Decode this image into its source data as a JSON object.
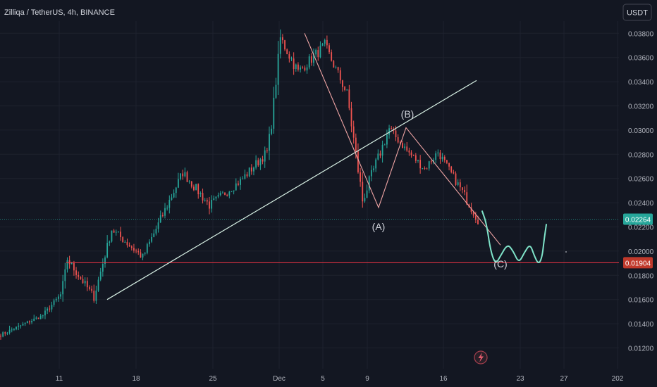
{
  "header": {
    "symbol_line": "Zilliqa / TetherUS, 4h, BINANCE",
    "currency_button": "USDT"
  },
  "colors": {
    "background": "#131722",
    "grid": "#1e222d",
    "up_candle": "#26a69a",
    "down_candle": "#ef5350",
    "trendline": "#d9f2e6",
    "wave_line": "#f0a5a5",
    "projection": "#7fe3c9",
    "support_line": "#f23645",
    "current_price_badge": "#26a69a",
    "support_price_badge": "#c0392b",
    "axis_text": "#b2b5be"
  },
  "chart_data": {
    "type": "candlestick",
    "timeframe": "4h",
    "y_axis": {
      "ticks": [
        0.012,
        0.014,
        0.016,
        0.018,
        0.02,
        0.022,
        0.024,
        0.026,
        0.028,
        0.03,
        0.032,
        0.034,
        0.036,
        0.038
      ],
      "tick_labels": [
        "0.01200",
        "0.01400",
        "0.01600",
        "0.01800",
        "0.02000",
        "0.02200",
        "0.02400",
        "0.02600",
        "0.02800",
        "0.03000",
        "0.03200",
        "0.03400",
        "0.03600",
        "0.03800"
      ],
      "range": [
        0.0112,
        0.0394
      ]
    },
    "x_axis": {
      "tick_labels": [
        "11",
        "18",
        "25",
        "Dec",
        "5",
        "9",
        "16",
        "23",
        "27",
        "202"
      ]
    },
    "price_labels": {
      "current": "0.02264",
      "support": "0.01904"
    },
    "support_level": 0.01904,
    "current_price": 0.02264,
    "wave_labels": [
      "(A)",
      "(B)",
      "(C)"
    ],
    "wave_points": {
      "start_peak": 0.038,
      "A": 0.0236,
      "B": 0.0302,
      "C": 0.0205
    },
    "trendline": {
      "from": 0.016,
      "to": 0.0341
    },
    "projection_path": [
      0.0233,
      0.0223,
      0.02,
      0.0189,
      0.0196,
      0.0206,
      0.02,
      0.019,
      0.0199,
      0.0206,
      0.0196,
      0.0189,
      0.0195,
      0.021,
      0.0222
    ],
    "segments": [
      {
        "start": 0.013,
        "end": 0.0147,
        "n": 20,
        "noise": 0.0003
      },
      {
        "start": 0.0147,
        "end": 0.0164,
        "n": 8,
        "noise": 0.0004
      },
      {
        "start": 0.0164,
        "end": 0.0193,
        "n": 3,
        "noise": 0.0004
      },
      {
        "start": 0.0193,
        "end": 0.0162,
        "n": 12,
        "noise": 0.0007
      },
      {
        "start": 0.0162,
        "end": 0.0218,
        "n": 8,
        "noise": 0.0007
      },
      {
        "start": 0.0218,
        "end": 0.0195,
        "n": 14,
        "noise": 0.0007
      },
      {
        "start": 0.0195,
        "end": 0.0265,
        "n": 18,
        "noise": 0.0008
      },
      {
        "start": 0.0265,
        "end": 0.0238,
        "n": 12,
        "noise": 0.0008
      },
      {
        "start": 0.0238,
        "end": 0.0258,
        "n": 14,
        "noise": 0.0007
      },
      {
        "start": 0.0258,
        "end": 0.0282,
        "n": 12,
        "noise": 0.0008
      },
      {
        "start": 0.0282,
        "end": 0.0305,
        "n": 2,
        "noise": 0.0008
      },
      {
        "start": 0.0305,
        "end": 0.0376,
        "n": 4,
        "noise": 0.001
      },
      {
        "start": 0.0376,
        "end": 0.0348,
        "n": 8,
        "noise": 0.001
      },
      {
        "start": 0.0348,
        "end": 0.037,
        "n": 12,
        "noise": 0.0009
      },
      {
        "start": 0.037,
        "end": 0.033,
        "n": 10,
        "noise": 0.0009
      },
      {
        "start": 0.033,
        "end": 0.0242,
        "n": 7,
        "noise": 0.0012
      },
      {
        "start": 0.0242,
        "end": 0.0272,
        "n": 6,
        "noise": 0.001
      },
      {
        "start": 0.0272,
        "end": 0.0301,
        "n": 6,
        "noise": 0.0009
      },
      {
        "start": 0.0301,
        "end": 0.0283,
        "n": 8,
        "noise": 0.0007
      },
      {
        "start": 0.0283,
        "end": 0.0268,
        "n": 8,
        "noise": 0.0007
      },
      {
        "start": 0.0268,
        "end": 0.0282,
        "n": 6,
        "noise": 0.0007
      },
      {
        "start": 0.0282,
        "end": 0.0252,
        "n": 10,
        "noise": 0.0007
      },
      {
        "start": 0.0252,
        "end": 0.0226,
        "n": 8,
        "noise": 0.0008
      }
    ]
  },
  "icons": {
    "bottom_indicator": "lightning-icon"
  }
}
